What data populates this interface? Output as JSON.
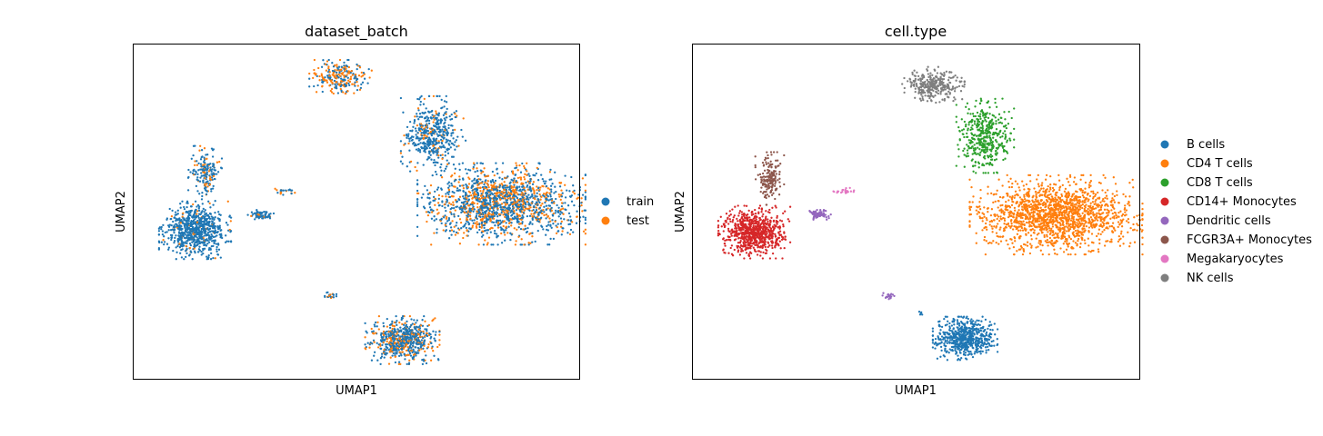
{
  "figure": {
    "background": "#ffffff"
  },
  "chart_data": [
    {
      "type": "scatter",
      "title": "dataset_batch",
      "xlabel": "UMAP1",
      "ylabel": "UMAP2",
      "ticks": "none",
      "legend_position": "right",
      "series": [
        {
          "name": "train",
          "color": "#1f77b4"
        },
        {
          "name": "test",
          "color": "#ff7f0e"
        }
      ],
      "clusters": [
        {
          "label": "NK cells region",
          "center": [
            228,
            36
          ],
          "spread": [
            26,
            14
          ],
          "count": 260,
          "mix": {
            "train": 0.55,
            "test": 0.45
          }
        },
        {
          "label": "CD8 T cells region",
          "center": [
            330,
            101
          ],
          "spread": [
            27,
            33
          ],
          "count": 480,
          "mix": {
            "train": 0.85,
            "test": 0.15
          }
        },
        {
          "label": "CD4 T cells region",
          "center": [
            405,
            176
          ],
          "spread": [
            70,
            34
          ],
          "count": 1600,
          "mix": {
            "train": 0.62,
            "test": 0.38
          }
        },
        {
          "label": "CD14+ Monocytes region",
          "center": [
            68,
            205
          ],
          "spread": [
            30,
            24
          ],
          "count": 750,
          "mix": {
            "train": 0.95,
            "test": 0.05
          }
        },
        {
          "label": "FCGR3A+ Monocytes region",
          "center": [
            79,
            141
          ],
          "spread": [
            14,
            24
          ],
          "count": 170,
          "mix": {
            "train": 0.78,
            "test": 0.22
          }
        },
        {
          "label": "Dendritic cells region",
          "center": [
            140,
            188
          ],
          "spread": [
            11,
            4
          ],
          "count": 70,
          "mix": {
            "train": 0.92,
            "test": 0.08
          }
        },
        {
          "label": "Megakaryocytes region",
          "center": [
            168,
            162
          ],
          "spread": [
            9,
            3
          ],
          "count": 24,
          "mix": {
            "train": 0.6,
            "test": 0.4
          }
        },
        {
          "label": "B cells region",
          "center": [
            296,
            326
          ],
          "spread": [
            31,
            20
          ],
          "count": 650,
          "mix": {
            "train": 0.7,
            "test": 0.3
          }
        },
        {
          "label": "small outlier cluster",
          "center": [
            217,
            277
          ],
          "spread": [
            6,
            3
          ],
          "count": 20,
          "mix": {
            "train": 0.8,
            "test": 0.2
          }
        }
      ]
    },
    {
      "type": "scatter",
      "title": "cell.type",
      "xlabel": "UMAP1",
      "ylabel": "UMAP2",
      "ticks": "none",
      "legend_position": "right",
      "series": [
        {
          "name": "B cells",
          "color": "#1f77b4"
        },
        {
          "name": "CD4 T cells",
          "color": "#ff7f0e"
        },
        {
          "name": "CD8 T cells",
          "color": "#2ca02c"
        },
        {
          "name": "CD14+ Monocytes",
          "color": "#d62728"
        },
        {
          "name": "Dendritic cells",
          "color": "#9467bd"
        },
        {
          "name": "FCGR3A+ Monocytes",
          "color": "#8c564b"
        },
        {
          "name": "Megakaryocytes",
          "color": "#e377c2"
        },
        {
          "name": "NK cells",
          "color": "#7f7f7f"
        }
      ],
      "clusters": [
        {
          "label": "NK cells",
          "center": [
            265,
            45
          ],
          "spread": [
            26,
            15
          ],
          "count": 320,
          "series": "NK cells"
        },
        {
          "label": "CD8 T cells",
          "center": [
            322,
            101
          ],
          "spread": [
            24,
            31
          ],
          "count": 430,
          "series": "CD8 T cells"
        },
        {
          "label": "CD4 T cells",
          "center": [
            400,
            188
          ],
          "spread": [
            72,
            33
          ],
          "count": 1650,
          "series": "CD4 T cells"
        },
        {
          "label": "CD14+ Monocytes",
          "center": [
            68,
            207
          ],
          "spread": [
            30,
            22
          ],
          "count": 780,
          "series": "CD14+ Monocytes"
        },
        {
          "label": "FCGR3A+ Monocytes",
          "center": [
            85,
            148
          ],
          "spread": [
            12,
            22
          ],
          "count": 170,
          "series": "FCGR3A+ Monocytes"
        },
        {
          "label": "Dendritic cells",
          "center": [
            140,
            188
          ],
          "spread": [
            10,
            4
          ],
          "count": 70,
          "series": "Dendritic cells"
        },
        {
          "label": "Megakaryocytes",
          "center": [
            167,
            162
          ],
          "spread": [
            9,
            3
          ],
          "count": 24,
          "series": "Megakaryocytes"
        },
        {
          "label": "B cells",
          "center": [
            300,
            324
          ],
          "spread": [
            27,
            18
          ],
          "count": 600,
          "series": "B cells"
        },
        {
          "label": "Dendritic cells outlier",
          "center": [
            217,
            278
          ],
          "spread": [
            6,
            3
          ],
          "count": 20,
          "series": "Dendritic cells"
        },
        {
          "label": "B cells outlier",
          "center": [
            251,
            296
          ],
          "spread": [
            2,
            2
          ],
          "count": 5,
          "series": "B cells"
        }
      ]
    }
  ]
}
